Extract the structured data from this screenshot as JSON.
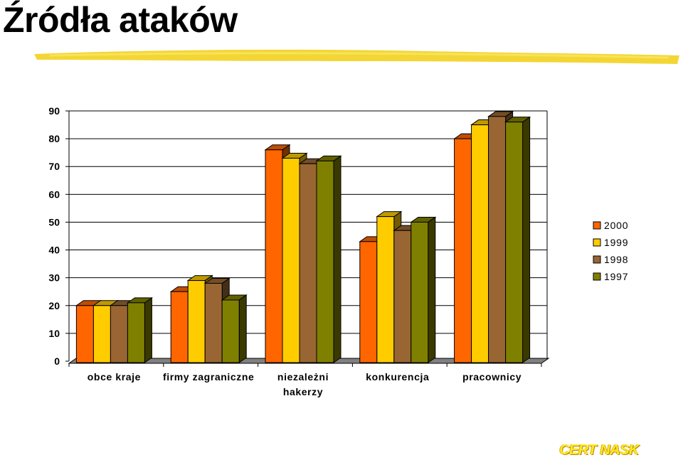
{
  "title": "Źródła ataków",
  "brand": "CERT NASK",
  "colors": {
    "underline": "#f2d21f",
    "series": [
      "#ff6600",
      "#ffcc00",
      "#996633",
      "#808000"
    ]
  },
  "chart_data": {
    "type": "bar",
    "title": "",
    "xlabel": "",
    "ylabel": "",
    "ylim": [
      0,
      90
    ],
    "yticks": [
      0,
      10,
      20,
      30,
      40,
      50,
      60,
      70,
      80,
      90
    ],
    "grid": true,
    "legend_position": "right",
    "categories": [
      [
        "obce kraje"
      ],
      [
        "firmy zagraniczne"
      ],
      [
        "niezależni",
        "hakerzy"
      ],
      [
        "konkurencja"
      ],
      [
        "pracownicy"
      ]
    ],
    "series": [
      {
        "name": "2000",
        "values": [
          20,
          25,
          76,
          43,
          80
        ]
      },
      {
        "name": "1999",
        "values": [
          20,
          29,
          73,
          52,
          85
        ]
      },
      {
        "name": "1998",
        "values": [
          20,
          28,
          71,
          47,
          88
        ]
      },
      {
        "name": "1997",
        "values": [
          21,
          22,
          72,
          50,
          86
        ]
      }
    ]
  }
}
